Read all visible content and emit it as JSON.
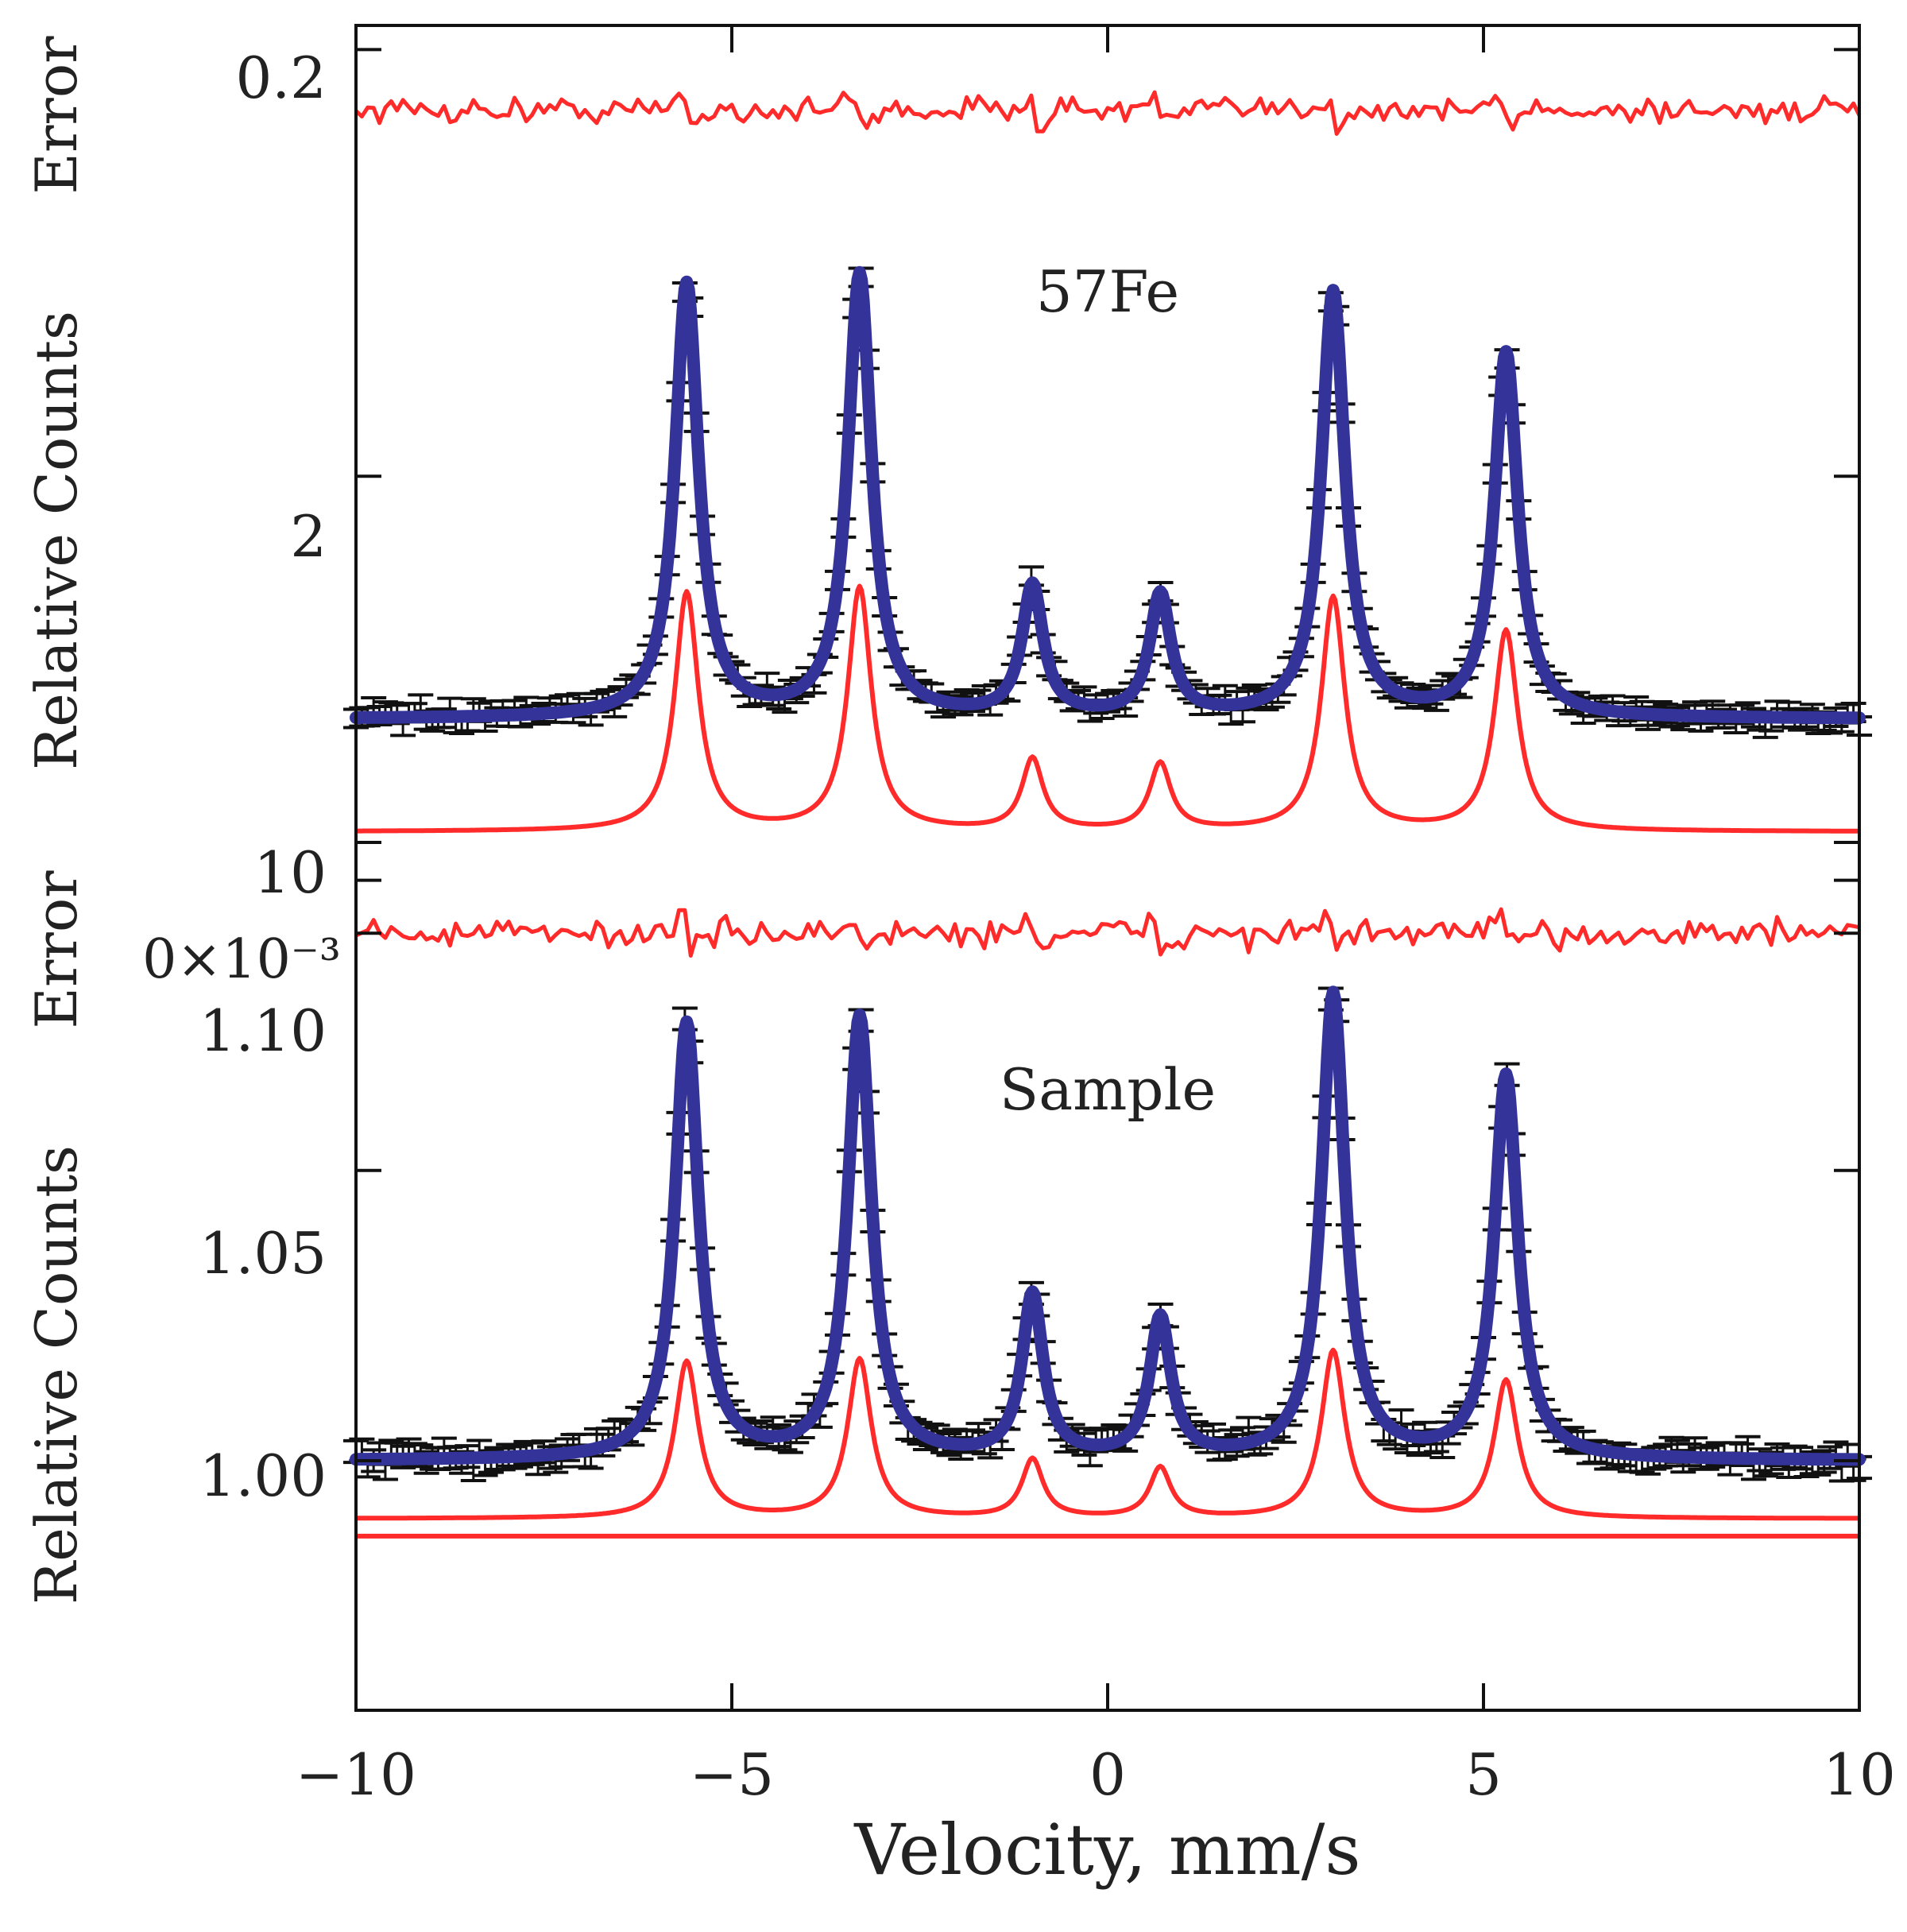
{
  "colors": {
    "fit": "#33339a",
    "component": "#ff2a2a",
    "data": "#111111",
    "residual": "#ff2a2a",
    "frame": "#111111"
  },
  "chart_data": {
    "type": "line",
    "title": "",
    "xlabel": "Velocity, mm/s",
    "xlim": [
      -10,
      10
    ],
    "xticks": [
      -10,
      -5,
      0,
      5,
      10
    ],
    "xtick_labels": [
      "−10",
      "−5",
      "0",
      "5",
      "10"
    ],
    "panels": [
      {
        "id": "fe57",
        "label": "57Fe",
        "ylabel": "Relative  Counts",
        "error_label": "Error",
        "ytick_labels": [
          "2"
        ],
        "ylim": [
          1.64,
          2.52
        ],
        "yticks": [
          2.0
        ],
        "error_ylim": [
          -0.32,
          0.28
        ],
        "error_yticks": [
          0.2
        ],
        "error_ytick_labels": [
          "0.2"
        ],
        "baseline": 1.72,
        "background": 1.59,
        "component_scale": 0.55,
        "lines": [
          {
            "position": -5.6,
            "amplitude": 0.5,
            "width": 0.19
          },
          {
            "position": -3.3,
            "amplitude": 0.51,
            "width": 0.19
          },
          {
            "position": -1.0,
            "amplitude": 0.15,
            "width": 0.17
          },
          {
            "position": 0.7,
            "amplitude": 0.14,
            "width": 0.17
          },
          {
            "position": 3.0,
            "amplitude": 0.49,
            "width": 0.19
          },
          {
            "position": 5.3,
            "amplitude": 0.42,
            "width": 0.19
          }
        ]
      },
      {
        "id": "sample",
        "label": "Sample",
        "ylabel": "Relative  Counts",
        "error_label": "Error",
        "ytick_labels": [
          "1.00",
          "1.05",
          "1.10"
        ],
        "ylim": [
          0.957,
          1.112
        ],
        "yticks": [
          1.0,
          1.05,
          1.1
        ],
        "error_ylim": [
          -0.011,
          0.01
        ],
        "error_yticks": [
          0.0,
          0.01
        ],
        "error_ytick_labels": [
          "0×10⁻³",
          "10"
        ],
        "baseline": 1.0,
        "background": 0.987,
        "background_offset": 0.003,
        "component_scale": 0.36,
        "lines": [
          {
            "position": -5.6,
            "amplitude": 0.075,
            "width": 0.19
          },
          {
            "position": -3.3,
            "amplitude": 0.076,
            "width": 0.19
          },
          {
            "position": -1.0,
            "amplitude": 0.028,
            "width": 0.17
          },
          {
            "position": 0.7,
            "amplitude": 0.024,
            "width": 0.17
          },
          {
            "position": 3.0,
            "amplitude": 0.08,
            "width": 0.19
          },
          {
            "position": 5.3,
            "amplitude": 0.066,
            "width": 0.19
          }
        ]
      }
    ]
  }
}
